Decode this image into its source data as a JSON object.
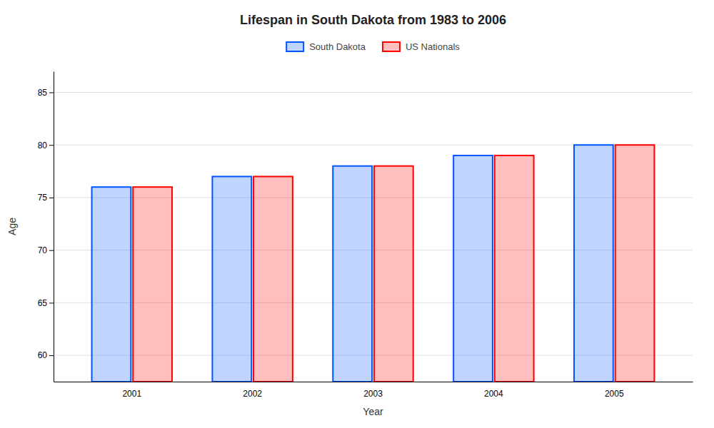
{
  "chart_data": {
    "type": "bar",
    "title": "Lifespan in South Dakota from 1983 to 2006",
    "xlabel": "Year",
    "ylabel": "Age",
    "categories": [
      "2001",
      "2002",
      "2003",
      "2004",
      "2005"
    ],
    "series": [
      {
        "name": "South Dakota",
        "color": "#0055ff",
        "values": [
          76,
          77,
          78,
          79,
          80
        ]
      },
      {
        "name": "US Nationals",
        "color": "#ff0000",
        "values": [
          76,
          77,
          78,
          79,
          80
        ]
      }
    ],
    "ylim": [
      57.5,
      87
    ],
    "yticks": [
      60,
      65,
      70,
      75,
      80,
      85
    ],
    "grid": true,
    "legend": "top"
  }
}
